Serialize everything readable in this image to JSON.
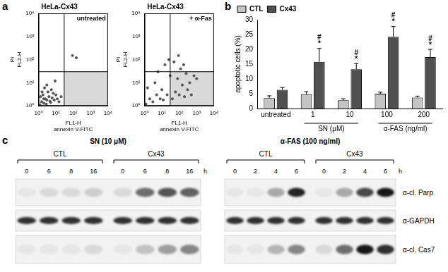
{
  "panel_labels": [
    "a",
    "b",
    "c"
  ],
  "chart_data": [
    {
      "type": "scatter",
      "title": "HeLa-Cx43",
      "annotation": "untreated",
      "x_label": [
        "FL1-H",
        "annexin V-FITC"
      ],
      "y_label": [
        "PI",
        "FL2-H"
      ],
      "log": true,
      "grid": false,
      "color": "#555555",
      "gates": {
        "x": 30,
        "y": 30
      },
      "xlim": [
        1,
        10000
      ],
      "ylim": [
        1,
        10000
      ],
      "xticks": [
        {
          "value": 1,
          "label": "10⁰"
        },
        {
          "value": 10,
          "label": "10¹"
        },
        {
          "value": 100,
          "label": "10²"
        },
        {
          "value": 1000,
          "label": "10³"
        },
        {
          "value": 10000,
          "label": "10⁴"
        }
      ],
      "yticks": [
        {
          "value": 1,
          "label": "10⁰"
        },
        {
          "value": 10,
          "label": "10¹"
        },
        {
          "value": 100,
          "label": "10²"
        },
        {
          "value": 1000,
          "label": "10³"
        },
        {
          "value": 10000,
          "label": "10⁴"
        }
      ],
      "x": [
        1.2,
        1.5,
        2,
        2.5,
        3,
        1.8,
        4,
        5,
        6,
        3.5,
        2.2,
        8,
        10,
        1.3,
        2.8,
        4.5,
        7,
        12,
        15,
        3,
        5.5,
        2,
        1.6,
        9,
        20,
        90,
        150
      ],
      "values": [
        1.1,
        1.5,
        1.3,
        2,
        1.8,
        3,
        2.5,
        1.4,
        2.2,
        4,
        6,
        1.8,
        3,
        2.5,
        1.2,
        1.6,
        3.5,
        2,
        1.5,
        8,
        5,
        2,
        4,
        12,
        2.5,
        150,
        120
      ]
    },
    {
      "type": "scatter",
      "title": "HeLa-Cx43",
      "annotation": "+ α-Fas",
      "x_label": [
        "FL1-H",
        "annexin V-FITC"
      ],
      "y_label": [
        "PI",
        "FL2-H"
      ],
      "log": true,
      "grid": false,
      "color": "#555555",
      "gates": {
        "x": 30,
        "y": 30
      },
      "xlim": [
        1,
        10000
      ],
      "ylim": [
        1,
        10000
      ],
      "xticks": [
        {
          "value": 1,
          "label": "10⁰"
        },
        {
          "value": 10,
          "label": "10¹"
        },
        {
          "value": 100,
          "label": "10²"
        },
        {
          "value": 1000,
          "label": "10³"
        },
        {
          "value": 10000,
          "label": "10⁴"
        }
      ],
      "yticks": [
        {
          "value": 1,
          "label": "10⁰"
        },
        {
          "value": 10,
          "label": "10¹"
        },
        {
          "value": 100,
          "label": "10²"
        },
        {
          "value": 1000,
          "label": "10³"
        },
        {
          "value": 10000,
          "label": "10⁴"
        }
      ],
      "x": [
        1.2,
        2,
        3,
        5,
        8,
        1.5,
        4,
        10,
        20,
        40,
        60,
        100,
        150,
        200,
        300,
        500,
        30,
        80,
        120,
        250,
        15,
        6,
        50,
        400,
        700,
        25,
        90,
        180,
        1000,
        12
      ],
      "values": [
        1.2,
        2,
        1.5,
        3,
        2,
        6,
        10,
        5,
        3,
        2,
        4,
        3,
        8,
        2.5,
        5,
        3,
        20,
        15,
        40,
        25,
        60,
        30,
        80,
        10,
        20,
        100,
        150,
        60,
        15,
        1.8
      ]
    },
    {
      "type": "bar",
      "y_label": "apoptotic cells (%)",
      "grid": false,
      "legend": "top-left",
      "categories": [
        "untreated",
        "1",
        "10",
        "100",
        "200"
      ],
      "groups": [
        {
          "label": "SN (μM)",
          "members": [
            "1",
            "10"
          ]
        },
        {
          "label": "α-FAS (ng/ml)",
          "members": [
            "100",
            "200"
          ]
        }
      ],
      "ylim": [
        0,
        30
      ],
      "yticks": [
        0,
        5,
        10,
        15,
        20,
        25,
        30
      ],
      "series": [
        {
          "name": "CTL",
          "color": "#c4c4c4",
          "values": [
            3.5,
            4.8,
            2.8,
            5.0,
            3.7
          ],
          "errors": [
            0.8,
            0.9,
            0.5,
            0.5,
            0.5
          ]
        },
        {
          "name": "Cx43",
          "color": "#505050",
          "values": [
            6.3,
            15.8,
            13.3,
            24.2,
            17.4
          ],
          "errors": [
            0.8,
            4.5,
            1.9,
            3.5,
            2.6
          ],
          "significance": [
            null,
            [
              "#",
              "*"
            ],
            [
              "#",
              "*"
            ],
            [
              "#",
              "*"
            ],
            [
              "#",
              "*"
            ]
          ]
        }
      ]
    }
  ],
  "blots": {
    "row_labels": [
      "α-cl. Parp",
      "α-GAPDH",
      "α-cl. Cas7"
    ],
    "panels": [
      {
        "title": "SN (10 μM)",
        "unit": "h",
        "groups": [
          {
            "name": "CTL",
            "lanes": [
              "0",
              "6",
              "8",
              "16"
            ]
          },
          {
            "name": "Cx43",
            "lanes": [
              "0",
              "6",
              "8",
              "16"
            ]
          }
        ],
        "intensities": [
          [
            0.05,
            0.1,
            0.1,
            0.15,
            0.1,
            0.55,
            0.65,
            0.6
          ],
          [
            0.8,
            0.8,
            0.8,
            0.8,
            0.8,
            0.8,
            0.8,
            0.8
          ],
          [
            0.05,
            0.05,
            0.05,
            0.1,
            0.05,
            0.2,
            0.35,
            0.45
          ]
        ]
      },
      {
        "title": "α-FAS (100 ng/ml)",
        "unit": "h",
        "groups": [
          {
            "name": "CTL",
            "lanes": [
              "0",
              "2",
              "4",
              "6"
            ]
          },
          {
            "name": "Cx43",
            "lanes": [
              "0",
              "2",
              "4",
              "6"
            ]
          }
        ],
        "intensities": [
          [
            0.05,
            0.05,
            0.3,
            0.85,
            0.05,
            0.3,
            0.7,
            0.9
          ],
          [
            0.8,
            0.8,
            0.8,
            0.8,
            0.8,
            0.8,
            0.8,
            0.8
          ],
          [
            0.05,
            0.05,
            0.25,
            0.45,
            0.1,
            0.55,
            0.9,
            0.8
          ]
        ]
      }
    ]
  }
}
